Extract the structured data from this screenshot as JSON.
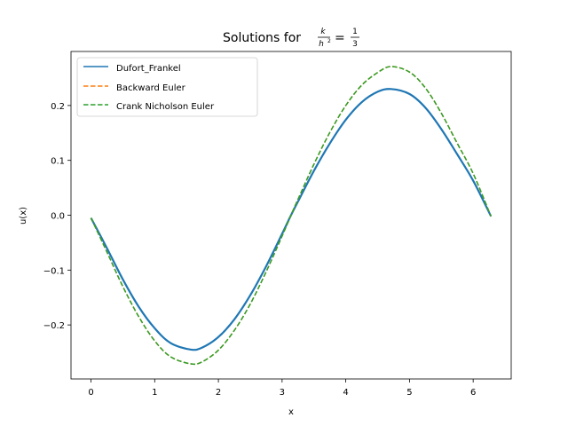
{
  "chart_data": {
    "type": "line",
    "title": {
      "prefix": "Solutions for ",
      "fraction1_num": "k",
      "fraction1_den": "h",
      "fraction1_den_exp": "2",
      "equals": "=",
      "fraction2_num": "1",
      "fraction2_den": "3"
    },
    "xlabel": "x",
    "ylabel": "u(x)",
    "xlim": [
      -0.314,
      6.597
    ],
    "ylim": [
      -0.2985,
      0.2985
    ],
    "xticks": [
      0,
      1,
      2,
      3,
      4,
      5,
      6
    ],
    "xtick_labels": [
      "0",
      "1",
      "2",
      "3",
      "4",
      "5",
      "6"
    ],
    "yticks": [
      -0.2,
      -0.1,
      0.0,
      0.1,
      0.2
    ],
    "ytick_labels": [
      "−0.2",
      "−0.1",
      "0.0",
      "0.1",
      "0.2"
    ],
    "grid": false,
    "legend_position": "upper left",
    "series": [
      {
        "name": "Dufort_Frankel",
        "color": "#1f77b4",
        "style": "solid",
        "amplitude": 0.23,
        "neg_amplitude": 0.245,
        "x": [
          0,
          0.25,
          0.5,
          0.75,
          1.0,
          1.25,
          1.57,
          1.75,
          2.0,
          2.25,
          2.5,
          2.75,
          3.0,
          3.14,
          3.25,
          3.5,
          3.75,
          4.0,
          4.25,
          4.5,
          4.71,
          5.0,
          5.25,
          5.5,
          5.75,
          6.0,
          6.28
        ],
        "y": [
          -0.005,
          -0.06,
          -0.117,
          -0.167,
          -0.206,
          -0.233,
          -0.245,
          -0.241,
          -0.222,
          -0.19,
          -0.146,
          -0.093,
          -0.034,
          0.0,
          0.025,
          0.081,
          0.131,
          0.174,
          0.206,
          0.225,
          0.23,
          0.221,
          0.196,
          0.157,
          0.111,
          0.063,
          -0.002
        ]
      },
      {
        "name": "Backward Euler",
        "color": "#ff7f0e",
        "style": "dashed",
        "x": [
          0,
          0.25,
          0.5,
          0.75,
          1.0,
          1.25,
          1.57,
          1.75,
          2.0,
          2.25,
          2.5,
          2.75,
          3.0,
          3.14,
          3.25,
          3.5,
          3.75,
          4.0,
          4.25,
          4.5,
          4.71,
          5.0,
          5.25,
          5.5,
          5.75,
          6.0,
          6.28
        ],
        "y": [
          -0.005,
          -0.067,
          -0.13,
          -0.185,
          -0.229,
          -0.258,
          -0.271,
          -0.267,
          -0.246,
          -0.21,
          -0.162,
          -0.103,
          -0.038,
          0.0,
          0.029,
          0.093,
          0.151,
          0.2,
          0.237,
          0.26,
          0.271,
          0.261,
          0.232,
          0.186,
          0.131,
          0.076,
          -0.002
        ]
      },
      {
        "name": "Crank Nicholson Euler",
        "color": "#2ca02c",
        "style": "dashed",
        "x": [
          0,
          0.25,
          0.5,
          0.75,
          1.0,
          1.25,
          1.57,
          1.75,
          2.0,
          2.25,
          2.5,
          2.75,
          3.0,
          3.14,
          3.25,
          3.5,
          3.75,
          4.0,
          4.25,
          4.5,
          4.71,
          5.0,
          5.25,
          5.5,
          5.75,
          6.0,
          6.28
        ],
        "y": [
          -0.005,
          -0.067,
          -0.13,
          -0.185,
          -0.229,
          -0.258,
          -0.271,
          -0.267,
          -0.246,
          -0.21,
          -0.162,
          -0.103,
          -0.038,
          0.0,
          0.029,
          0.093,
          0.151,
          0.2,
          0.237,
          0.26,
          0.271,
          0.261,
          0.232,
          0.186,
          0.131,
          0.076,
          -0.002
        ]
      }
    ]
  }
}
